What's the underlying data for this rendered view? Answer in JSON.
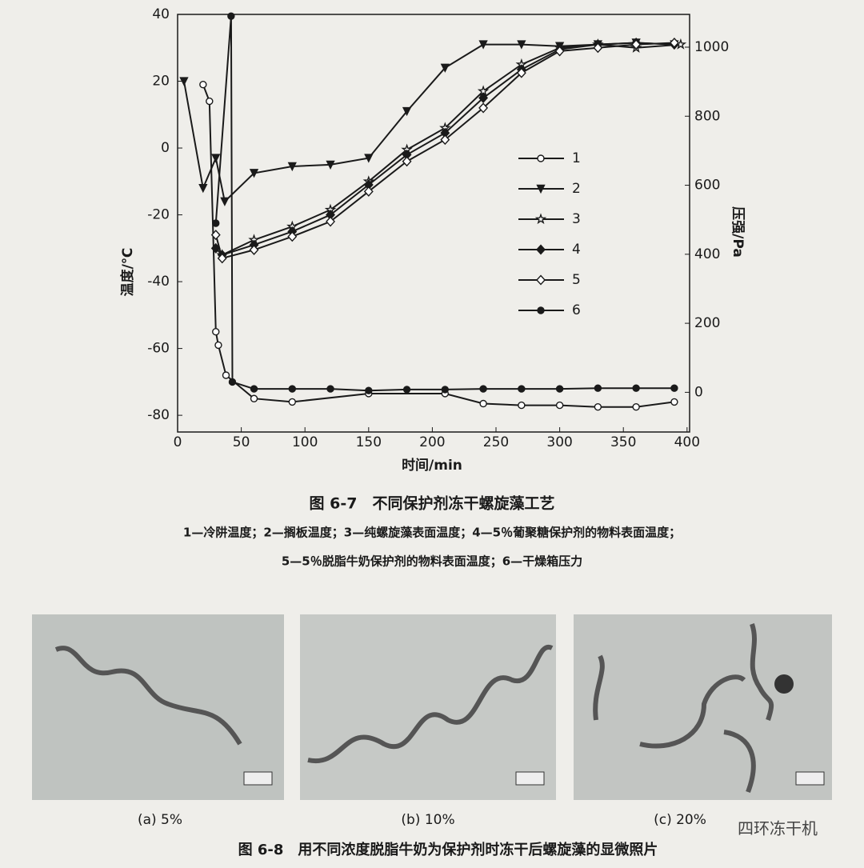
{
  "chart_data": {
    "type": "line",
    "xlabel": "时间/min",
    "ylabel": "温度/℃",
    "y2label": "压强/Pa",
    "xlim": [
      0,
      402
    ],
    "ylim": [
      -85,
      40
    ],
    "y2lim": [
      -115,
      1095
    ],
    "xticks": [
      0,
      50,
      100,
      150,
      200,
      250,
      300,
      350,
      400
    ],
    "yticks": [
      -80,
      -60,
      -40,
      -20,
      0,
      20,
      40
    ],
    "y2ticks": [
      0,
      200,
      400,
      600,
      800,
      1000
    ],
    "legend": "right",
    "series": [
      {
        "name": "1",
        "color": "#1a1a1a",
        "marker": "open-circle",
        "x": [
          20,
          25,
          30,
          32,
          38,
          60,
          90,
          150,
          210,
          240,
          270,
          300,
          330,
          360,
          390
        ],
        "values": [
          19,
          14,
          -55,
          -59,
          -68,
          -75,
          -76,
          -73.5,
          -73.5,
          -76.5,
          -77,
          -77,
          -77.5,
          -77.5,
          -76
        ]
      },
      {
        "name": "2",
        "color": "#1a1a1a",
        "marker": "triangle-down",
        "x": [
          5,
          20,
          30,
          37,
          60,
          90,
          120,
          150,
          180,
          210,
          240,
          270,
          300,
          330,
          360,
          390
        ],
        "values": [
          20,
          -12,
          -3,
          -16,
          -7.5,
          -5.5,
          -5,
          -3,
          11,
          24,
          31,
          31,
          30.5,
          31,
          31.5,
          31
        ]
      },
      {
        "name": "3",
        "color": "#1a1a1a",
        "marker": "star",
        "x": [
          35,
          60,
          90,
          120,
          150,
          180,
          210,
          240,
          270,
          300,
          330,
          360,
          395
        ],
        "values": [
          -32,
          -27.5,
          -23.5,
          -18.5,
          -10,
          -0.5,
          6,
          17,
          25,
          30,
          31,
          30,
          31
        ]
      },
      {
        "name": "4",
        "color": "#1a1a1a",
        "marker": "diamond",
        "x": [
          30,
          35,
          60,
          90,
          120,
          150,
          180,
          210,
          240,
          270,
          300,
          330,
          360,
          390
        ],
        "values": [
          -30,
          -32,
          -29,
          -25,
          -20,
          -11,
          -2,
          4.5,
          15,
          23.5,
          29.5,
          31,
          31.5,
          31
        ]
      },
      {
        "name": "5",
        "color": "#1a1a1a",
        "marker": "open-diamond",
        "x": [
          30,
          35,
          60,
          90,
          120,
          150,
          180,
          210,
          240,
          270,
          300,
          330,
          360,
          390
        ],
        "values": [
          -26,
          -33,
          -30.5,
          -26.5,
          -22,
          -13,
          -4,
          2.5,
          12,
          22.5,
          29,
          30,
          31,
          31.5
        ]
      },
      {
        "name": "6",
        "color": "#1a1a1a",
        "marker": "circle",
        "axis": "y2",
        "x": [
          30,
          42,
          43,
          60,
          90,
          120,
          150,
          180,
          210,
          240,
          270,
          300,
          330,
          360,
          390
        ],
        "values": [
          490,
          1090,
          30,
          10,
          10,
          10,
          5,
          8,
          8,
          10,
          10,
          10,
          12,
          12,
          12
        ]
      }
    ]
  },
  "figure_caption": "图 6-7　不同保护剂冻干螺旋藻工艺",
  "notes": [
    "1—冷阱温度；2—搁板温度；3—纯螺旋藻表面温度；4—5％葡聚糖保护剂的物料表面温度；",
    "5—5％脱脂牛奶保护剂的物料表面温度；6—干燥箱压力"
  ],
  "photos": {
    "captions": [
      "(a) 5%",
      "(b) 10%",
      "(c) 20%"
    ],
    "title": "图 6-8　用不同浓度脱脂牛奶为保护剂时冻干后螺旋藻的显微照片"
  },
  "watermark": "四环冻干机"
}
